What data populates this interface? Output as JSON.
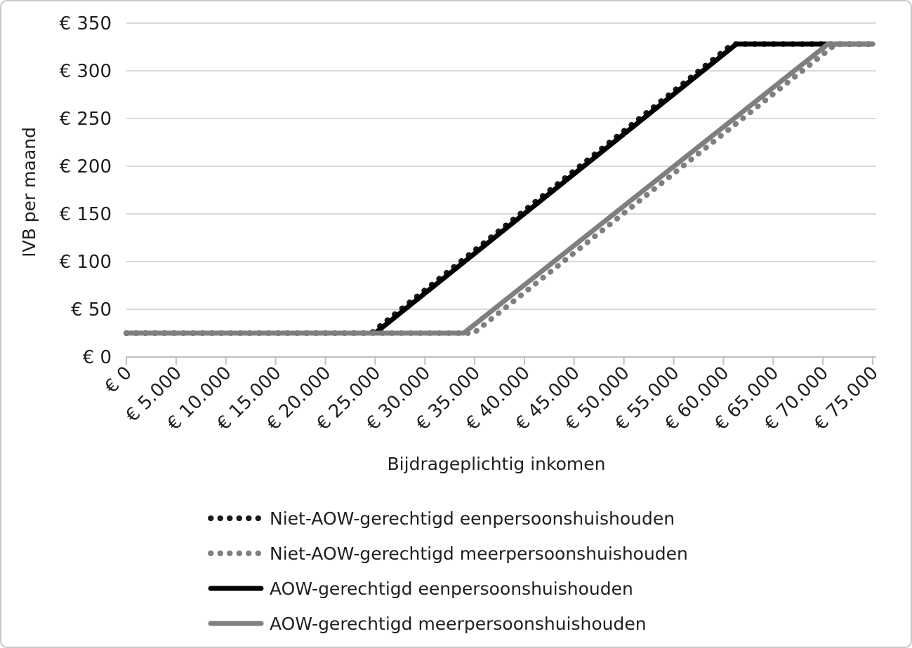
{
  "chart_data": {
    "type": "line",
    "title": "",
    "xlabel": "Bijdrageplichtig inkomen",
    "ylabel": "IVB per maand",
    "xlim": [
      0,
      75000
    ],
    "ylim": [
      0,
      350
    ],
    "grid": "horizontal",
    "legend_position": "bottom-left",
    "y_ticks": [
      0,
      50,
      100,
      150,
      200,
      250,
      300,
      350
    ],
    "y_tick_labels": [
      "€ 0",
      "€ 50",
      "€ 100",
      "€ 150",
      "€ 200",
      "€ 250",
      "€ 300",
      "€ 350"
    ],
    "x_ticks": [
      0,
      5000,
      10000,
      15000,
      20000,
      25000,
      30000,
      35000,
      40000,
      45000,
      50000,
      55000,
      60000,
      65000,
      70000,
      75000
    ],
    "x_tick_labels": [
      "€ 0",
      "€ 5.000",
      "€ 10.000",
      "€ 15.000",
      "€ 20.000",
      "€ 25.000",
      "€ 30.000",
      "€ 35.000",
      "€ 40.000",
      "€ 45.000",
      "€ 50.000",
      "€ 55.000",
      "€ 60.000",
      "€ 65.000",
      "€ 70.000",
      "€ 75.000"
    ],
    "series": [
      {
        "name": "Niet-AOW-gerechtigd eenpersoonshuishouden",
        "style": "dotted",
        "color": "#1a1a1a",
        "points": [
          [
            0,
            25
          ],
          [
            24600,
            25
          ],
          [
            60900,
            328
          ],
          [
            75000,
            328
          ]
        ]
      },
      {
        "name": "Niet-AOW-gerechtigd meerpersoonshuishouden",
        "style": "dotted",
        "color": "#7f7f7f",
        "points": [
          [
            0,
            25
          ],
          [
            34900,
            25
          ],
          [
            71300,
            328
          ],
          [
            75000,
            328
          ]
        ]
      },
      {
        "name": "AOW-gerechtigd eenpersoonshuishouden",
        "style": "solid",
        "color": "#000000",
        "points": [
          [
            0,
            25
          ],
          [
            25000,
            25
          ],
          [
            61300,
            328
          ],
          [
            75000,
            328
          ]
        ]
      },
      {
        "name": "AOW-gerechtigd meerpersoonshuishouden",
        "style": "solid",
        "color": "#7f7f7f",
        "points": [
          [
            0,
            25
          ],
          [
            33900,
            25
          ],
          [
            70500,
            328
          ],
          [
            75000,
            328
          ]
        ]
      }
    ]
  },
  "colors": {
    "gridline": "#d9d9d9",
    "axis": "#bfbfbf",
    "text": "#1f1f1f",
    "page_border": "#c9c9c9"
  }
}
